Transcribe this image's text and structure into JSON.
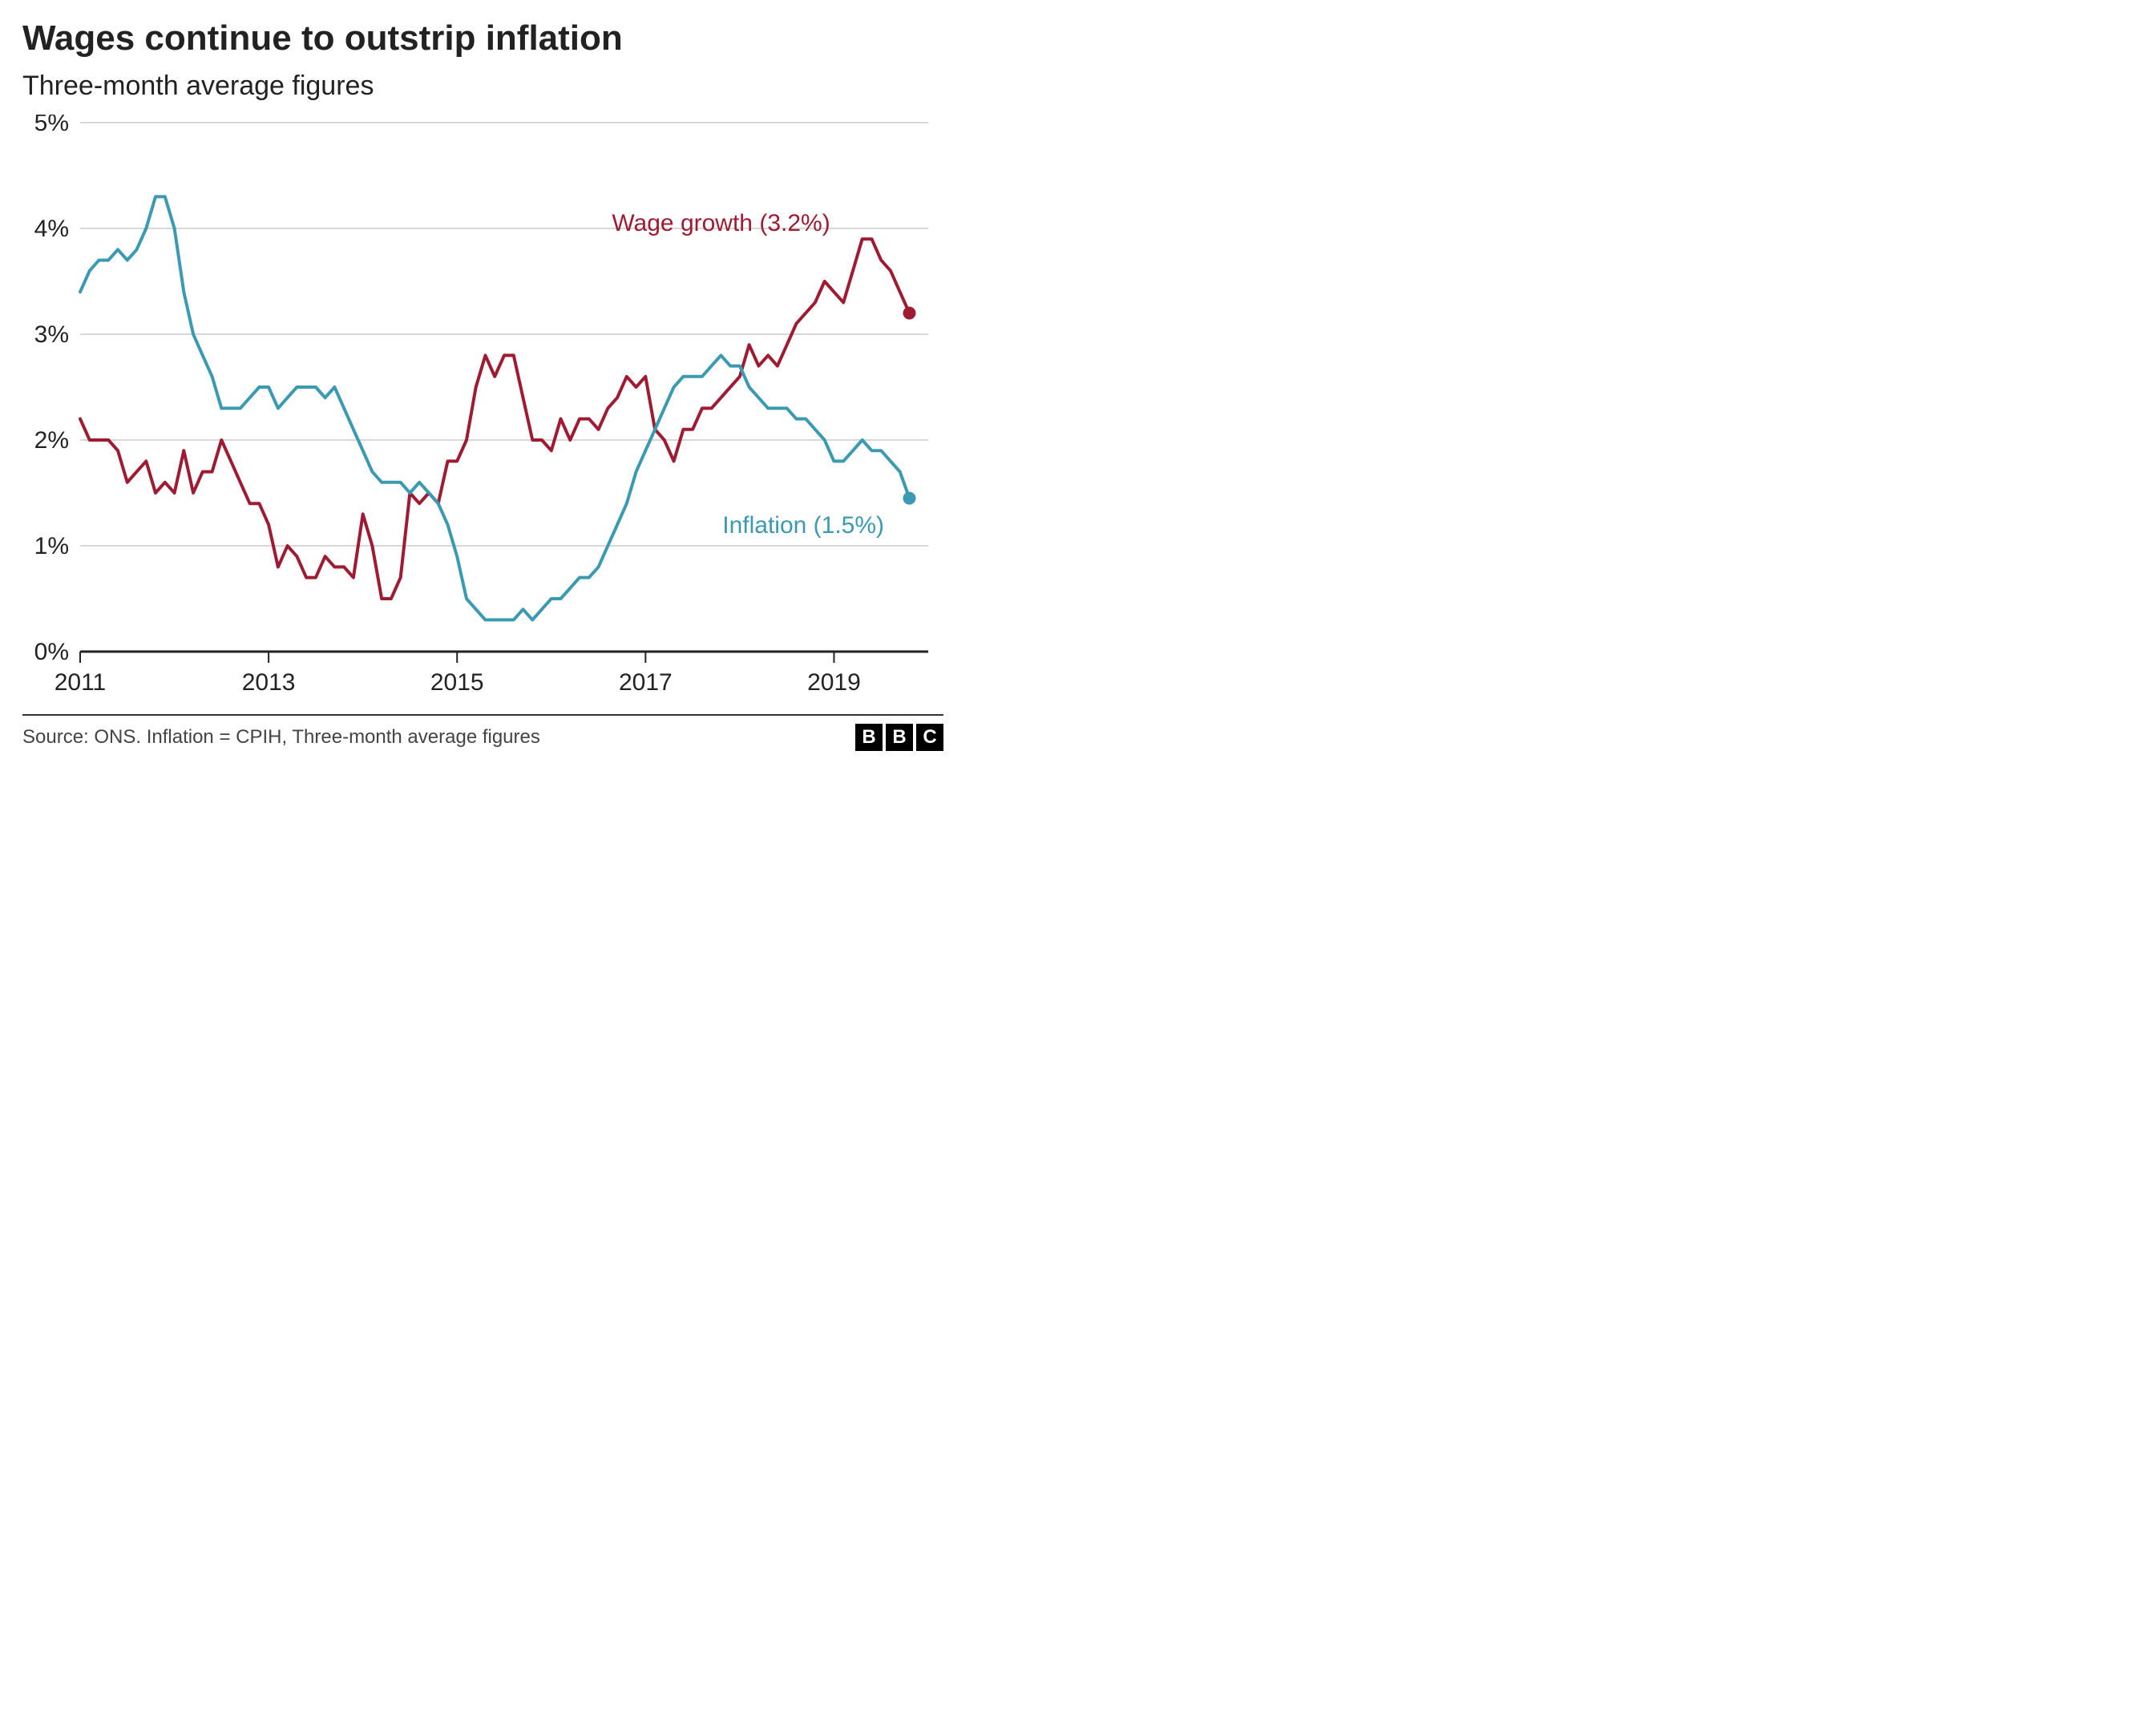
{
  "title": "Wages continue to outstrip inflation",
  "subtitle": "Three-month average figures",
  "source_text": "Source: ONS. Inflation = CPIH, Three-month average figures",
  "logo_letters": [
    "B",
    "B",
    "C"
  ],
  "chart": {
    "type": "line",
    "background_color": "#ffffff",
    "grid_color": "#cccccc",
    "axis_color": "#222222",
    "y": {
      "min": 0,
      "max": 5,
      "tick_step": 1,
      "suffix": "%",
      "label_fontsize": 30
    },
    "x": {
      "min": 2011,
      "max": 2020,
      "ticks": [
        2011,
        2013,
        2015,
        2017,
        2019
      ],
      "label_fontsize": 30
    },
    "series": [
      {
        "name": "Wage growth",
        "label": "Wage growth (3.2%)",
        "color": "#9e1b32",
        "line_width": 4,
        "end_marker_radius": 8,
        "label_pos": {
          "x_pct": 64,
          "y_pct": 16
        },
        "points": [
          [
            2011.0,
            2.2
          ],
          [
            2011.1,
            2.0
          ],
          [
            2011.2,
            2.0
          ],
          [
            2011.3,
            2.0
          ],
          [
            2011.4,
            1.9
          ],
          [
            2011.5,
            1.6
          ],
          [
            2011.6,
            1.7
          ],
          [
            2011.7,
            1.8
          ],
          [
            2011.8,
            1.5
          ],
          [
            2011.9,
            1.6
          ],
          [
            2012.0,
            1.5
          ],
          [
            2012.1,
            1.9
          ],
          [
            2012.2,
            1.5
          ],
          [
            2012.3,
            1.7
          ],
          [
            2012.4,
            1.7
          ],
          [
            2012.5,
            2.0
          ],
          [
            2012.6,
            1.8
          ],
          [
            2012.7,
            1.6
          ],
          [
            2012.8,
            1.4
          ],
          [
            2012.9,
            1.4
          ],
          [
            2013.0,
            1.2
          ],
          [
            2013.1,
            0.8
          ],
          [
            2013.2,
            1.0
          ],
          [
            2013.3,
            0.9
          ],
          [
            2013.4,
            0.7
          ],
          [
            2013.5,
            0.7
          ],
          [
            2013.6,
            0.9
          ],
          [
            2013.7,
            0.8
          ],
          [
            2013.8,
            0.8
          ],
          [
            2013.9,
            0.7
          ],
          [
            2014.0,
            1.3
          ],
          [
            2014.1,
            1.0
          ],
          [
            2014.2,
            0.5
          ],
          [
            2014.3,
            0.5
          ],
          [
            2014.4,
            0.7
          ],
          [
            2014.5,
            1.5
          ],
          [
            2014.6,
            1.4
          ],
          [
            2014.7,
            1.5
          ],
          [
            2014.8,
            1.4
          ],
          [
            2014.9,
            1.8
          ],
          [
            2015.0,
            1.8
          ],
          [
            2015.1,
            2.0
          ],
          [
            2015.2,
            2.5
          ],
          [
            2015.3,
            2.8
          ],
          [
            2015.4,
            2.6
          ],
          [
            2015.5,
            2.8
          ],
          [
            2015.6,
            2.8
          ],
          [
            2015.7,
            2.4
          ],
          [
            2015.8,
            2.0
          ],
          [
            2015.9,
            2.0
          ],
          [
            2016.0,
            1.9
          ],
          [
            2016.1,
            2.2
          ],
          [
            2016.2,
            2.0
          ],
          [
            2016.3,
            2.2
          ],
          [
            2016.4,
            2.2
          ],
          [
            2016.5,
            2.1
          ],
          [
            2016.6,
            2.3
          ],
          [
            2016.7,
            2.4
          ],
          [
            2016.8,
            2.6
          ],
          [
            2016.9,
            2.5
          ],
          [
            2017.0,
            2.6
          ],
          [
            2017.1,
            2.1
          ],
          [
            2017.2,
            2.0
          ],
          [
            2017.3,
            1.8
          ],
          [
            2017.4,
            2.1
          ],
          [
            2017.5,
            2.1
          ],
          [
            2017.6,
            2.3
          ],
          [
            2017.7,
            2.3
          ],
          [
            2017.8,
            2.4
          ],
          [
            2017.9,
            2.5
          ],
          [
            2018.0,
            2.6
          ],
          [
            2018.1,
            2.9
          ],
          [
            2018.2,
            2.7
          ],
          [
            2018.3,
            2.8
          ],
          [
            2018.4,
            2.7
          ],
          [
            2018.5,
            2.9
          ],
          [
            2018.6,
            3.1
          ],
          [
            2018.7,
            3.2
          ],
          [
            2018.8,
            3.3
          ],
          [
            2018.9,
            3.5
          ],
          [
            2019.0,
            3.4
          ],
          [
            2019.1,
            3.3
          ],
          [
            2019.2,
            3.6
          ],
          [
            2019.3,
            3.9
          ],
          [
            2019.4,
            3.9
          ],
          [
            2019.5,
            3.7
          ],
          [
            2019.6,
            3.6
          ],
          [
            2019.7,
            3.4
          ],
          [
            2019.8,
            3.2
          ]
        ]
      },
      {
        "name": "Inflation",
        "label": "Inflation (1.5%)",
        "color": "#3b99b1",
        "line_width": 4,
        "end_marker_radius": 8,
        "label_pos": {
          "x_pct": 76,
          "y_pct": 67
        },
        "points": [
          [
            2011.0,
            3.4
          ],
          [
            2011.1,
            3.6
          ],
          [
            2011.2,
            3.7
          ],
          [
            2011.3,
            3.7
          ],
          [
            2011.4,
            3.8
          ],
          [
            2011.5,
            3.7
          ],
          [
            2011.6,
            3.8
          ],
          [
            2011.7,
            4.0
          ],
          [
            2011.8,
            4.3
          ],
          [
            2011.9,
            4.3
          ],
          [
            2012.0,
            4.0
          ],
          [
            2012.1,
            3.4
          ],
          [
            2012.2,
            3.0
          ],
          [
            2012.3,
            2.8
          ],
          [
            2012.4,
            2.6
          ],
          [
            2012.5,
            2.3
          ],
          [
            2012.6,
            2.3
          ],
          [
            2012.7,
            2.3
          ],
          [
            2012.8,
            2.4
          ],
          [
            2012.9,
            2.5
          ],
          [
            2013.0,
            2.5
          ],
          [
            2013.1,
            2.3
          ],
          [
            2013.2,
            2.4
          ],
          [
            2013.3,
            2.5
          ],
          [
            2013.4,
            2.5
          ],
          [
            2013.5,
            2.5
          ],
          [
            2013.6,
            2.4
          ],
          [
            2013.7,
            2.5
          ],
          [
            2013.8,
            2.3
          ],
          [
            2013.9,
            2.1
          ],
          [
            2014.0,
            1.9
          ],
          [
            2014.1,
            1.7
          ],
          [
            2014.2,
            1.6
          ],
          [
            2014.3,
            1.6
          ],
          [
            2014.4,
            1.6
          ],
          [
            2014.5,
            1.5
          ],
          [
            2014.6,
            1.6
          ],
          [
            2014.7,
            1.5
          ],
          [
            2014.8,
            1.4
          ],
          [
            2014.9,
            1.2
          ],
          [
            2015.0,
            0.9
          ],
          [
            2015.1,
            0.5
          ],
          [
            2015.2,
            0.4
          ],
          [
            2015.3,
            0.3
          ],
          [
            2015.4,
            0.3
          ],
          [
            2015.5,
            0.3
          ],
          [
            2015.6,
            0.3
          ],
          [
            2015.7,
            0.4
          ],
          [
            2015.8,
            0.3
          ],
          [
            2015.9,
            0.4
          ],
          [
            2016.0,
            0.5
          ],
          [
            2016.1,
            0.5
          ],
          [
            2016.2,
            0.6
          ],
          [
            2016.3,
            0.7
          ],
          [
            2016.4,
            0.7
          ],
          [
            2016.5,
            0.8
          ],
          [
            2016.6,
            1.0
          ],
          [
            2016.7,
            1.2
          ],
          [
            2016.8,
            1.4
          ],
          [
            2016.9,
            1.7
          ],
          [
            2017.0,
            1.9
          ],
          [
            2017.1,
            2.1
          ],
          [
            2017.2,
            2.3
          ],
          [
            2017.3,
            2.5
          ],
          [
            2017.4,
            2.6
          ],
          [
            2017.5,
            2.6
          ],
          [
            2017.6,
            2.6
          ],
          [
            2017.7,
            2.7
          ],
          [
            2017.8,
            2.8
          ],
          [
            2017.9,
            2.7
          ],
          [
            2018.0,
            2.7
          ],
          [
            2018.1,
            2.5
          ],
          [
            2018.2,
            2.4
          ],
          [
            2018.3,
            2.3
          ],
          [
            2018.4,
            2.3
          ],
          [
            2018.5,
            2.3
          ],
          [
            2018.6,
            2.2
          ],
          [
            2018.7,
            2.2
          ],
          [
            2018.8,
            2.1
          ],
          [
            2018.9,
            2.0
          ],
          [
            2019.0,
            1.8
          ],
          [
            2019.1,
            1.8
          ],
          [
            2019.2,
            1.9
          ],
          [
            2019.3,
            2.0
          ],
          [
            2019.4,
            1.9
          ],
          [
            2019.5,
            1.9
          ],
          [
            2019.6,
            1.8
          ],
          [
            2019.7,
            1.7
          ],
          [
            2019.8,
            1.45
          ]
        ]
      }
    ]
  }
}
